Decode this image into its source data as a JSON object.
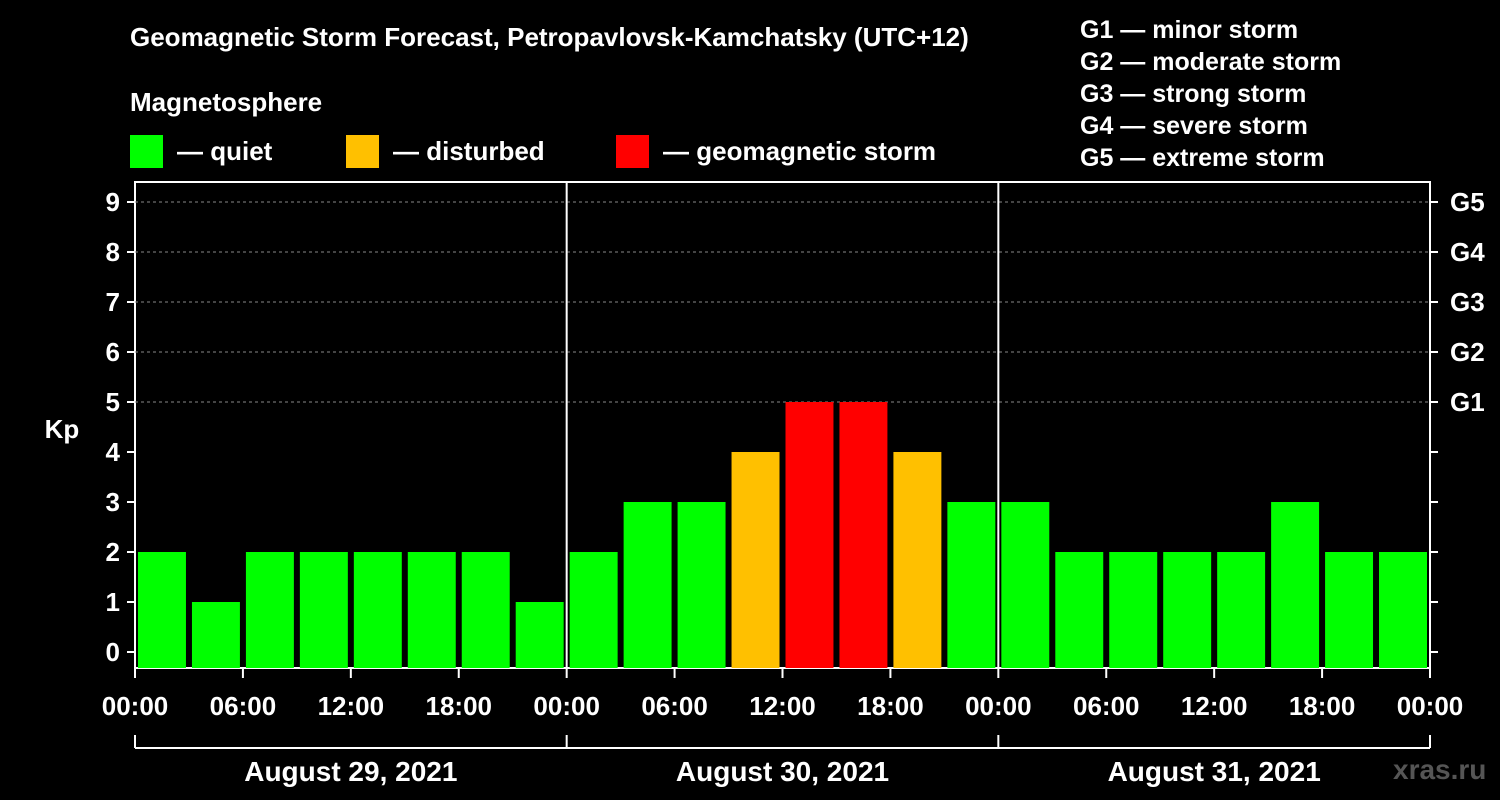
{
  "chart_data": {
    "type": "bar",
    "title": "Geomagnetic Storm Forecast, Petropavlovsk-Kamchatsky (UTC+12)",
    "ylabel": "Kp",
    "ylim": [
      0,
      9
    ],
    "yticks": [
      "0",
      "1",
      "2",
      "3",
      "4",
      "5",
      "6",
      "7",
      "8",
      "9"
    ],
    "right_axis": [
      {
        "kp": 5,
        "label": "G1"
      },
      {
        "kp": 6,
        "label": "G2"
      },
      {
        "kp": 7,
        "label": "G3"
      },
      {
        "kp": 8,
        "label": "G4"
      },
      {
        "kp": 9,
        "label": "G5"
      }
    ],
    "xticks": [
      "00:00",
      "06:00",
      "12:00",
      "18:00",
      "00:00",
      "06:00",
      "12:00",
      "18:00",
      "00:00",
      "06:00",
      "12:00",
      "18:00",
      "00:00"
    ],
    "days": [
      "August 29, 2021",
      "August 30, 2021",
      "August 31, 2021"
    ],
    "values": [
      2,
      1,
      2,
      2,
      2,
      2,
      2,
      1,
      2,
      3,
      3,
      4,
      5,
      5,
      4,
      3,
      3,
      2,
      2,
      2,
      2,
      3,
      2,
      2
    ],
    "legend_title": "Magnetosphere",
    "legend": [
      {
        "label": "— quiet",
        "color": "#00ff00"
      },
      {
        "label": "— disturbed",
        "color": "#ffc000"
      },
      {
        "label": "— geomagnetic storm",
        "color": "#ff0000"
      }
    ],
    "storm_levels": [
      "G1 — minor storm",
      "G2 — moderate storm",
      "G3 — strong storm",
      "G4 — severe storm",
      "G5 — extreme storm"
    ],
    "colors": {
      "quiet": "#00ff00",
      "disturbed": "#ffc000",
      "storm": "#ff0000",
      "grid": "#888888"
    }
  },
  "watermark": "xras.ru"
}
